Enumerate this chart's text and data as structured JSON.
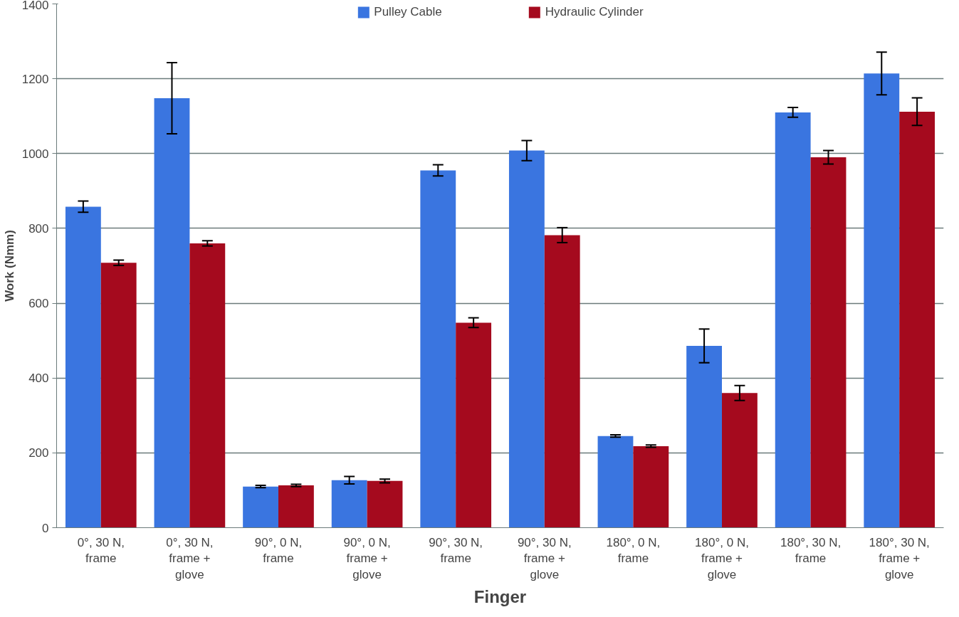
{
  "chart_data": {
    "type": "bar",
    "xlabel": "Finger",
    "ylabel": "Work (Nmm)",
    "categories": [
      "0°, 30 N,\nframe",
      "0°, 30 N,\nframe +\nglove",
      "90°, 0 N,\nframe",
      "90°, 0 N,\nframe +\nglove",
      "90°, 30 N,\nframe",
      "90°, 30 N,\nframe +\nglove",
      "180°, 0 N,\nframe",
      "180°, 0 N,\nframe +\nglove",
      "180°, 30 N,\nframe",
      "180°, 30 N,\nframe +\nglove"
    ],
    "series": [
      {
        "name": "Pulley Cable",
        "color": "#3a75e0",
        "values": [
          858,
          1148,
          110,
          127,
          955,
          1008,
          245,
          486,
          1110,
          1214
        ],
        "errors": [
          15,
          95,
          3,
          10,
          15,
          27,
          3,
          45,
          13,
          57
        ]
      },
      {
        "name": "Hydraulic Cylinder",
        "color": "#a50a1e",
        "values": [
          708,
          760,
          113,
          125,
          548,
          782,
          218,
          360,
          990,
          1112
        ],
        "errors": [
          7,
          7,
          3,
          5,
          13,
          20,
          3,
          20,
          18,
          37
        ]
      }
    ],
    "ylim": [
      0,
      1400
    ],
    "yticks": [
      0,
      200,
      400,
      600,
      800,
      1000,
      1200,
      1400
    ],
    "grid": "y",
    "legend": "top"
  }
}
